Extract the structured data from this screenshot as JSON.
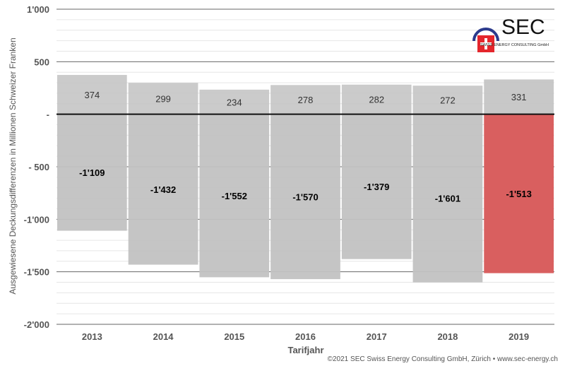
{
  "chart_data": {
    "type": "bar",
    "categories": [
      "2013",
      "2014",
      "2015",
      "2016",
      "2017",
      "2018",
      "2019"
    ],
    "series": [
      {
        "values": [
          374,
          299,
          234,
          278,
          282,
          272,
          331
        ]
      },
      {
        "values": [
          -1109,
          -1432,
          -1552,
          -1570,
          -1379,
          -1601,
          -1513
        ]
      }
    ],
    "value_labels": {
      "positive": [
        "374",
        "299",
        "234",
        "278",
        "282",
        "272",
        "331"
      ],
      "negative": [
        "-1'109",
        "-1'432",
        "-1'552",
        "-1'570",
        "-1'379",
        "-1'601",
        "-1'513"
      ]
    },
    "xlabel": "Tarifjahr",
    "ylabel": "Ausgewiesene Deckungsdifferenzen in Millionen Schweizer Franken",
    "ylim": [
      -2000,
      1000
    ],
    "y_ticks": [
      1000,
      500,
      0,
      -500,
      -1000,
      -1500,
      -2000
    ],
    "y_tick_labels": [
      "1'000",
      "500",
      "-",
      "- 500",
      "-1'000",
      "-1'500",
      "-2'000"
    ],
    "grid": true,
    "colors": {
      "bar": "#c2c2c2",
      "bar_highlight": "#d95f5f",
      "zero_line": "#111111",
      "major_grid": "#666666",
      "minor_grid": "#e6e6e6"
    },
    "highlight_index": 6
  },
  "logo": {
    "text": "SEC",
    "subtitle": "SWISS ENERGY CONSULTING GmbH"
  },
  "copyright": "©2021 SEC Swiss Energy Consulting GmbH, Zürich • www.sec-energy.ch"
}
